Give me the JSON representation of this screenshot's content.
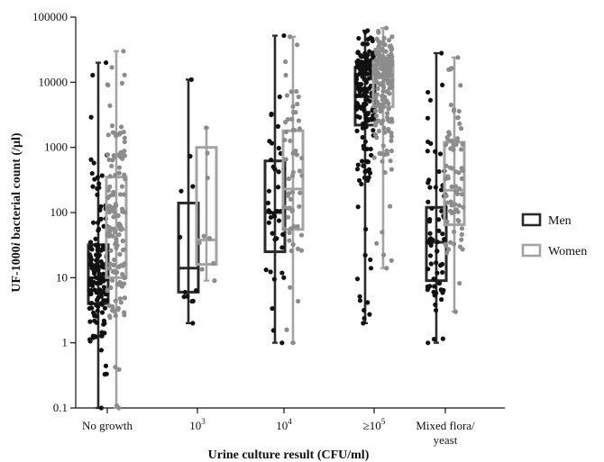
{
  "chart_data": {
    "type": "box",
    "title": "",
    "xlabel": "Urine culture result (CFU/ml)",
    "ylabel_parts": [
      "UF-1000",
      "i",
      " bacterial count (/µl)"
    ],
    "y_scale": "log",
    "ylim": [
      0.1,
      100000
    ],
    "y_ticks": [
      {
        "value": 0.1,
        "label": "0.1"
      },
      {
        "value": 1,
        "label": "1"
      },
      {
        "value": 10,
        "label": "10"
      },
      {
        "value": 100,
        "label": "100"
      },
      {
        "value": 1000,
        "label": "1000"
      },
      {
        "value": 10000,
        "label": "10000"
      },
      {
        "value": 100000,
        "label": "100000"
      }
    ],
    "categories": [
      {
        "label_lines": [
          "No growth"
        ]
      },
      {
        "label_base": "10",
        "label_sup": "3"
      },
      {
        "label_base": "10",
        "label_sup": "4"
      },
      {
        "label_base": "≥10",
        "label_sup": "5"
      },
      {
        "label_lines": [
          "Mixed flora/",
          "yeast"
        ]
      }
    ],
    "legend": {
      "position": "right",
      "entries": [
        "Men",
        "Women"
      ]
    },
    "colors": {
      "men": "#2a2a2a",
      "women": "#a3a3a3",
      "men_points": "#111111",
      "women_points": "#8c8c8c"
    },
    "series": [
      {
        "name": "Men",
        "boxes": [
          {
            "min": 0.1,
            "q1": 4,
            "median": 10,
            "q3": 32,
            "max": 20000,
            "n_points": 150
          },
          {
            "min": 2,
            "q1": 6,
            "median": 14,
            "q3": 140,
            "max": 11000,
            "n_points": 12
          },
          {
            "min": 1,
            "q1": 25,
            "median": 100,
            "q3": 620,
            "max": 52000,
            "n_points": 40
          },
          {
            "min": 2,
            "q1": 2200,
            "median": 6000,
            "q3": 17000,
            "max": 62000,
            "n_points": 170
          },
          {
            "min": 1,
            "q1": 9,
            "median": 35,
            "q3": 120,
            "max": 28000,
            "n_points": 70
          }
        ]
      },
      {
        "name": "Women",
        "boxes": [
          {
            "min": 0.1,
            "q1": 10,
            "median": 55,
            "q3": 350,
            "max": 30000,
            "n_points": 140
          },
          {
            "min": 9,
            "q1": 16,
            "median": 38,
            "q3": 1000,
            "max": 2000,
            "n_points": 9
          },
          {
            "min": 1,
            "q1": 55,
            "median": 230,
            "q3": 1800,
            "max": 50000,
            "n_points": 60
          },
          {
            "min": 14,
            "q1": 4200,
            "median": 12000,
            "q3": 21000,
            "max": 68000,
            "n_points": 190
          },
          {
            "min": 3,
            "q1": 65,
            "median": 220,
            "q3": 1200,
            "max": 24000,
            "n_points": 75
          }
        ]
      }
    ]
  }
}
